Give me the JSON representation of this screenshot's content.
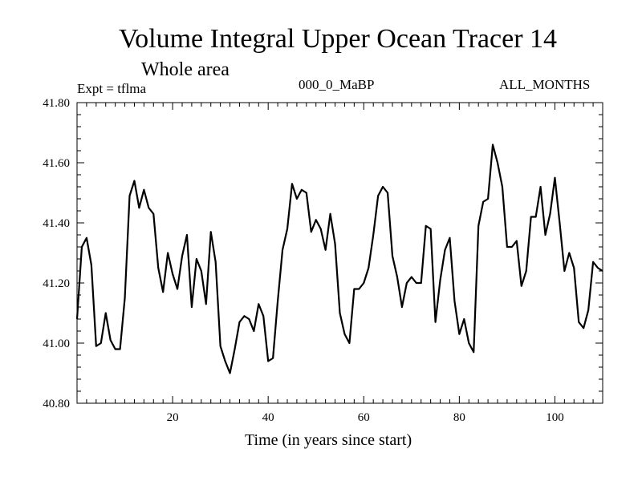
{
  "chart_data": {
    "type": "line",
    "title": "Volume Integral Upper Ocean Tracer 14",
    "subtitle": "Whole area",
    "annotations": {
      "expt": "Expt = tflma",
      "period": "000_0_MaBP",
      "months": "ALL_MONTHS"
    },
    "xlabel": "Time (in years since start)",
    "ylabel": "",
    "xlim": [
      0,
      110
    ],
    "ylim": [
      40.8,
      41.8
    ],
    "x_ticks": [
      20,
      40,
      60,
      80,
      100
    ],
    "x_tick_labels": [
      "20",
      "40",
      "60",
      "80",
      "100"
    ],
    "y_ticks": [
      40.8,
      41.0,
      41.2,
      41.4,
      41.6,
      41.8
    ],
    "y_tick_labels": [
      "40.80",
      "41.00",
      "41.20",
      "41.40",
      "41.60",
      "41.80"
    ],
    "series": [
      {
        "name": "Tracer 14",
        "x": [
          0,
          1,
          2,
          3,
          4,
          5,
          6,
          7,
          8,
          9,
          10,
          11,
          12,
          13,
          14,
          15,
          16,
          17,
          18,
          19,
          20,
          21,
          22,
          23,
          24,
          25,
          26,
          27,
          28,
          29,
          30,
          31,
          32,
          33,
          34,
          35,
          36,
          37,
          38,
          39,
          40,
          41,
          42,
          43,
          44,
          45,
          46,
          47,
          48,
          49,
          50,
          51,
          52,
          53,
          54,
          55,
          56,
          57,
          58,
          59,
          60,
          61,
          62,
          63,
          64,
          65,
          66,
          67,
          68,
          69,
          70,
          71,
          72,
          73,
          74,
          75,
          76,
          77,
          78,
          79,
          80,
          81,
          82,
          83,
          84,
          85,
          86,
          87,
          88,
          89,
          90,
          91,
          92,
          93,
          94,
          95,
          96,
          97,
          98,
          99,
          100,
          101,
          102,
          103,
          104,
          105,
          106,
          107,
          108,
          109,
          110
        ],
        "values": [
          41.08,
          41.32,
          41.35,
          41.26,
          40.99,
          41.0,
          41.1,
          41.01,
          40.98,
          40.98,
          41.15,
          41.49,
          41.54,
          41.45,
          41.51,
          41.45,
          41.43,
          41.25,
          41.17,
          41.3,
          41.23,
          41.18,
          41.29,
          41.36,
          41.12,
          41.28,
          41.24,
          41.13,
          41.37,
          41.27,
          40.99,
          40.94,
          40.9,
          40.98,
          41.07,
          41.09,
          41.08,
          41.04,
          41.13,
          41.09,
          40.94,
          40.95,
          41.14,
          41.31,
          41.38,
          41.53,
          41.48,
          41.51,
          41.5,
          41.37,
          41.41,
          41.38,
          41.31,
          41.43,
          41.33,
          41.1,
          41.03,
          41.0,
          41.18,
          41.18,
          41.2,
          41.25,
          41.36,
          41.49,
          41.52,
          41.5,
          41.29,
          41.22,
          41.12,
          41.2,
          41.22,
          41.2,
          41.2,
          41.39,
          41.38,
          41.07,
          41.21,
          41.31,
          41.35,
          41.14,
          41.03,
          41.08,
          41.0,
          40.97,
          41.39,
          41.47,
          41.48,
          41.66,
          41.6,
          41.52,
          41.32,
          41.32,
          41.34,
          41.19,
          41.24,
          41.42,
          41.42,
          41.52,
          41.36,
          41.43,
          41.55,
          41.4,
          41.24,
          41.3,
          41.25,
          41.07,
          41.05,
          41.11,
          41.27,
          41.25,
          41.24
        ]
      }
    ]
  }
}
